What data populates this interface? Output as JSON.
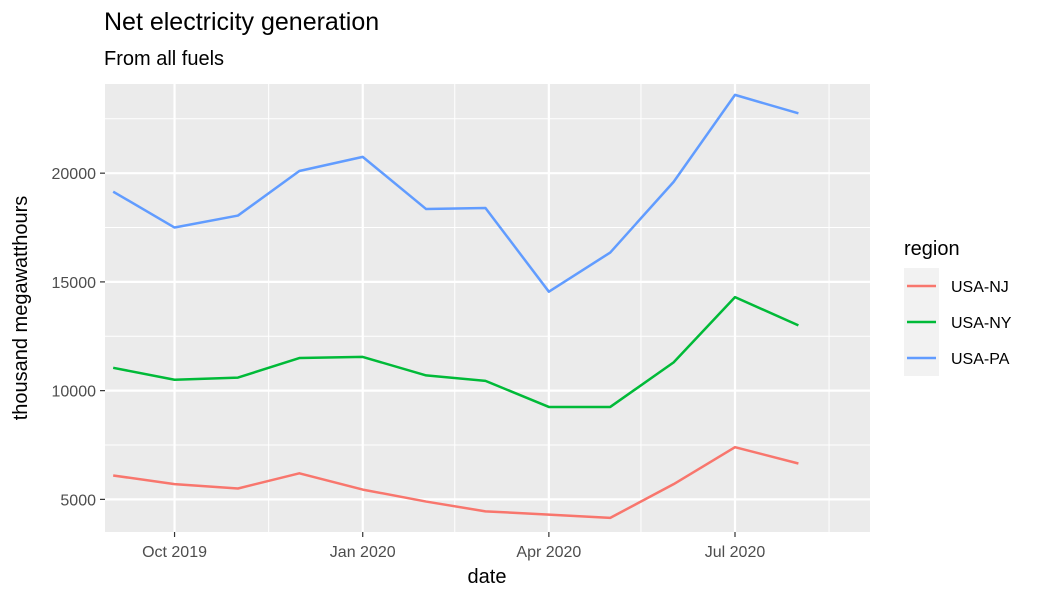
{
  "chart_data": {
    "type": "line",
    "title": "Net electricity generation",
    "subtitle": "From all fuels",
    "xlabel": "date",
    "ylabel": "thousand megawatthours",
    "x": [
      "2019-09",
      "2019-10",
      "2019-11",
      "2019-12",
      "2020-01",
      "2020-02",
      "2020-03",
      "2020-04",
      "2020-05",
      "2020-06",
      "2020-07",
      "2020-08"
    ],
    "x_tick_labels": [
      "Oct 2019",
      "Jan 2020",
      "Apr 2020",
      "Jul 2020"
    ],
    "x_tick_positions": [
      "2019-10",
      "2020-01",
      "2020-04",
      "2020-07"
    ],
    "x_minor_positions": [
      "2019-08-16",
      "2019-11-16",
      "2020-02-15",
      "2020-05-16",
      "2020-08-16"
    ],
    "xlim": [
      "2019-08-28",
      "2020-09-05"
    ],
    "ylim": [
      3500,
      24100
    ],
    "y_ticks": [
      5000,
      10000,
      15000,
      20000
    ],
    "y_tick_labels": [
      "5000",
      "10000",
      "15000",
      "20000"
    ],
    "y_minor_ticks": [
      7500,
      12500,
      17500,
      22500
    ],
    "grid": true,
    "panel_background": "#ebebeb",
    "grid_color": "#ffffff",
    "legend": {
      "title": "region",
      "placement": "right"
    },
    "series": [
      {
        "name": "USA-NJ",
        "color": "#F8766D",
        "values": [
          6100,
          5700,
          5500,
          6200,
          5450,
          4900,
          4450,
          4300,
          4150,
          5700,
          7400,
          6650
        ]
      },
      {
        "name": "USA-NY",
        "color": "#00BA38",
        "values": [
          11050,
          10500,
          10600,
          11500,
          11550,
          10700,
          10450,
          9250,
          9250,
          11300,
          14300,
          13000
        ]
      },
      {
        "name": "USA-PA",
        "color": "#619CFF",
        "values": [
          19150,
          17500,
          18050,
          20100,
          20750,
          18350,
          18400,
          14550,
          16350,
          19600,
          23600,
          22750
        ]
      }
    ]
  }
}
